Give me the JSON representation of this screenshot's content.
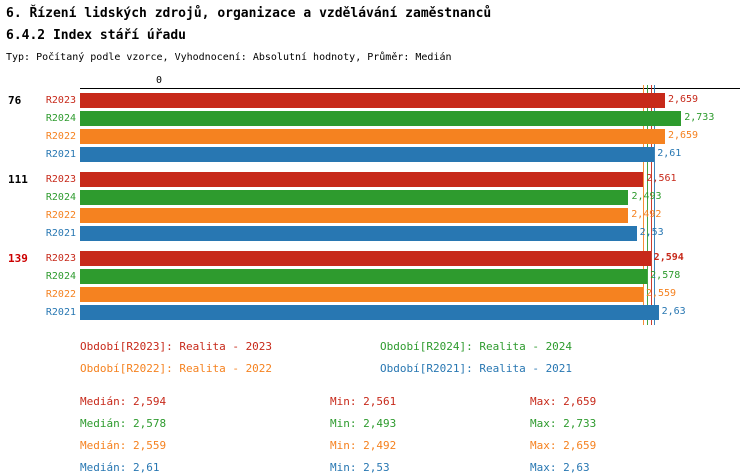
{
  "header": {
    "title": "6. Řízení lidských zdrojů, organizace a vzdělávání zaměstnanců",
    "subtitle": "6.4.2 Index stáří úřadu",
    "meta": "Typ: Počítaný podle vzorce, Vyhodnocení: Absolutní hodnoty, Průměr: Medián"
  },
  "colors": {
    "r2023": "#c7291a",
    "r2024": "#2e9b2e",
    "r2022": "#f58220",
    "r2021": "#2877b2",
    "highlight": "#cc0000",
    "axis": "#000000"
  },
  "chart_data": {
    "type": "bar",
    "orientation": "horizontal",
    "title": "6.4.2 Index stáří úřadu",
    "axis": {
      "origin_label": "0",
      "xmin": 0,
      "xmax": 3.0,
      "grid": false
    },
    "series_order": [
      "R2023",
      "R2024",
      "R2022",
      "R2021"
    ],
    "groups": [
      {
        "label": "76",
        "highlight": false,
        "bars": [
          {
            "series": "R2023",
            "value": 2.659,
            "value_label": "2,659",
            "color_key": "r2023",
            "bold": false
          },
          {
            "series": "R2024",
            "value": 2.733,
            "value_label": "2,733",
            "color_key": "r2024",
            "bold": false
          },
          {
            "series": "R2022",
            "value": 2.659,
            "value_label": "2,659",
            "color_key": "r2022",
            "bold": false
          },
          {
            "series": "R2021",
            "value": 2.61,
            "value_label": "2,61",
            "color_key": "r2021",
            "bold": false
          }
        ]
      },
      {
        "label": "111",
        "highlight": false,
        "bars": [
          {
            "series": "R2023",
            "value": 2.561,
            "value_label": "2,561",
            "color_key": "r2023",
            "bold": false
          },
          {
            "series": "R2024",
            "value": 2.493,
            "value_label": "2,493",
            "color_key": "r2024",
            "bold": false
          },
          {
            "series": "R2022",
            "value": 2.492,
            "value_label": "2,492",
            "color_key": "r2022",
            "bold": false
          },
          {
            "series": "R2021",
            "value": 2.53,
            "value_label": "2,53",
            "color_key": "r2021",
            "bold": false
          }
        ]
      },
      {
        "label": "139",
        "highlight": true,
        "bars": [
          {
            "series": "R2023",
            "value": 2.594,
            "value_label": "2,594",
            "color_key": "r2023",
            "bold": true
          },
          {
            "series": "R2024",
            "value": 2.578,
            "value_label": "2,578",
            "color_key": "r2024",
            "bold": false
          },
          {
            "series": "R2022",
            "value": 2.559,
            "value_label": "2,559",
            "color_key": "r2022",
            "bold": false
          },
          {
            "series": "R2021",
            "value": 2.63,
            "value_label": "2,63",
            "color_key": "r2021",
            "bold": false
          }
        ]
      }
    ],
    "medians": [
      {
        "series": "R2023",
        "value": 2.594,
        "color_key": "r2023"
      },
      {
        "series": "R2024",
        "value": 2.578,
        "color_key": "r2024"
      },
      {
        "series": "R2022",
        "value": 2.559,
        "color_key": "r2022"
      },
      {
        "series": "R2021",
        "value": 2.61,
        "color_key": "r2021"
      }
    ]
  },
  "legend": [
    {
      "text": "Období[R2023]: Realita - 2023",
      "color_key": "r2023"
    },
    {
      "text": "Období[R2024]: Realita - 2024",
      "color_key": "r2024"
    },
    {
      "text": "Období[R2022]: Realita - 2022",
      "color_key": "r2022"
    },
    {
      "text": "Období[R2021]: Realita - 2021",
      "color_key": "r2021"
    }
  ],
  "stats": [
    {
      "median": "Medián: 2,594",
      "min": "Min: 2,561",
      "max": "Max: 2,659",
      "color_key": "r2023"
    },
    {
      "median": "Medián: 2,578",
      "min": "Min: 2,493",
      "max": "Max: 2,733",
      "color_key": "r2024"
    },
    {
      "median": "Medián: 2,559",
      "min": "Min: 2,492",
      "max": "Max: 2,659",
      "color_key": "r2022"
    },
    {
      "median": "Medián: 2,61",
      "min": "Min: 2,53",
      "max": "Max: 2,63",
      "color_key": "r2021"
    }
  ]
}
